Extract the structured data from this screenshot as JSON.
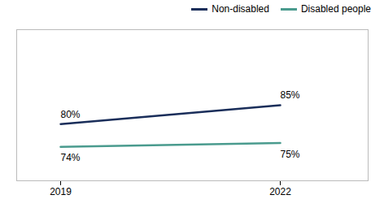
{
  "chart_data": {
    "type": "line",
    "x": [
      2019,
      2022
    ],
    "series": [
      {
        "name": "Non-disabled",
        "color": "#1a2e5a",
        "values": [
          80,
          85
        ],
        "value_labels": [
          "80%",
          "85%"
        ]
      },
      {
        "name": "Disabled people",
        "color": "#4a9b8e",
        "values": [
          74,
          75
        ],
        "value_labels": [
          "74%",
          "75%"
        ]
      }
    ],
    "xlim": [
      2018.4,
      2023.2
    ],
    "xticks": [
      2019,
      2022
    ],
    "ylim": [
      65,
      105
    ],
    "tick_labels": "x",
    "grid": false,
    "legend": "upper right",
    "data_labels": true
  }
}
